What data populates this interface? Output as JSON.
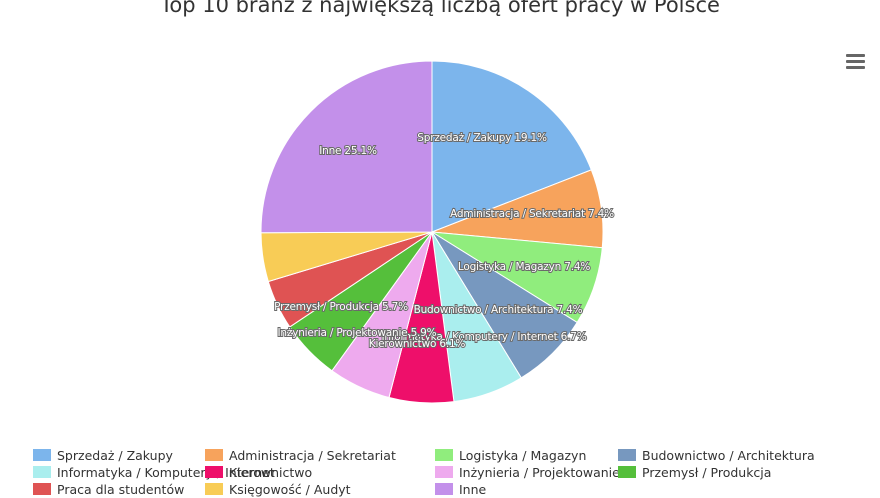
{
  "chart_data": {
    "type": "pie",
    "title": "Top 10 branż z największą liczbą ofert pracy w Polsce",
    "slices": [
      {
        "name": "Sprzedaż / Zakupy",
        "value": 19.1,
        "label": "Sprzedaż / Zakupy 19.1%",
        "color": "#7cb5ec"
      },
      {
        "name": "Administracja / Sekretariat",
        "value": 7.4,
        "label": "Administracja / Sekretariat 7.4%",
        "color": "#f7a35c"
      },
      {
        "name": "Logistyka / Magazyn",
        "value": 7.4,
        "label": "Logistyka / Magazyn 7.4%",
        "color": "#90ed7d"
      },
      {
        "name": "Budownictwo / Architektura",
        "value": 7.4,
        "label": "Budownictwo / Architektura 7.4%",
        "color": "#7798bf"
      },
      {
        "name": "Informatyka / Komputery / Internet",
        "value": 6.7,
        "label": "Informatyka / Komputery / Internet 6.7%",
        "color": "#aaeeee"
      },
      {
        "name": "Kierownictwo",
        "value": 6.1,
        "label": "Kierownictwo 6.1%",
        "color": "#ee0f6a"
      },
      {
        "name": "Inżynieria / Projektowanie",
        "value": 5.9,
        "label": "Inżynieria / Projektowanie 5.9%",
        "color": "#eeaaee"
      },
      {
        "name": "Przemysł / Produkcja",
        "value": 5.7,
        "label": "Przemysł / Produkcja 5.7%",
        "color": "#55bf3b"
      },
      {
        "name": "Praca dla studentów",
        "value": 4.7,
        "label": "",
        "color": "#df5353"
      },
      {
        "name": "Księgowość / Audyt",
        "value": 4.6,
        "label": "",
        "color": "#f8cc56"
      },
      {
        "name": "Inne",
        "value": 25.1,
        "label": "Inne 25.1%",
        "color": "#c390ea"
      }
    ],
    "legend_position": "bottom"
  },
  "menu": {
    "icon": "hamburger-menu-icon"
  }
}
